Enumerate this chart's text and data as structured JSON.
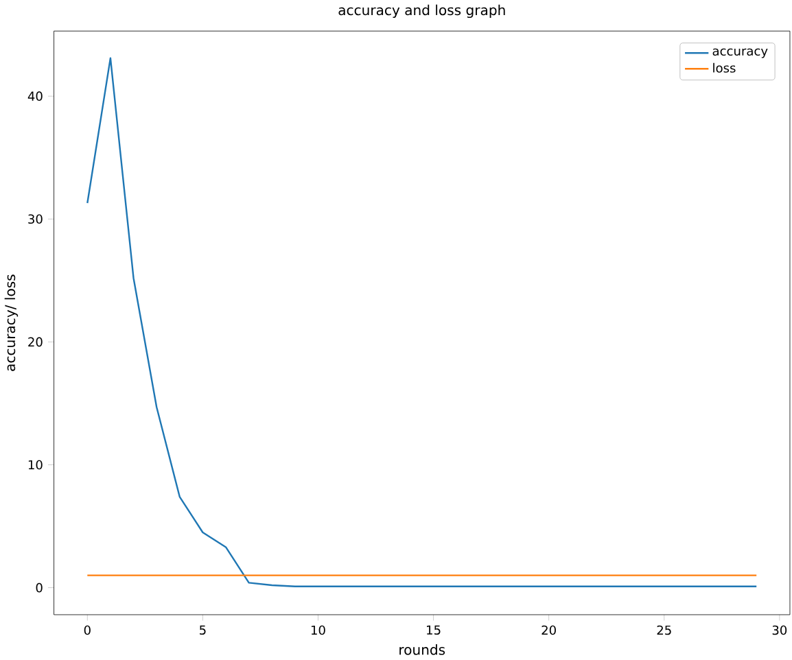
{
  "chart_data": {
    "type": "line",
    "title": "accuracy and loss graph",
    "xlabel": "rounds",
    "ylabel": "accuracy/ loss",
    "x": [
      0,
      1,
      2,
      3,
      4,
      5,
      6,
      7,
      8,
      9,
      10,
      11,
      12,
      13,
      14,
      15,
      16,
      17,
      18,
      19,
      20,
      21,
      22,
      23,
      24,
      25,
      26,
      27,
      28,
      29
    ],
    "series": [
      {
        "name": "accuracy",
        "color": "#1f77b4",
        "values": [
          31.3,
          43.1,
          25.2,
          14.7,
          7.4,
          4.5,
          3.3,
          0.4,
          0.2,
          0.1,
          0.1,
          0.1,
          0.1,
          0.1,
          0.1,
          0.1,
          0.1,
          0.1,
          0.1,
          0.1,
          0.1,
          0.1,
          0.1,
          0.1,
          0.1,
          0.1,
          0.1,
          0.1,
          0.1,
          0.1
        ]
      },
      {
        "name": "loss",
        "color": "#ff7f0e",
        "values": [
          1,
          1,
          1,
          1,
          1,
          1,
          1,
          1,
          1,
          1,
          1,
          1,
          1,
          1,
          1,
          1,
          1,
          1,
          1,
          1,
          1,
          1,
          1,
          1,
          1,
          1,
          1,
          1,
          1,
          1
        ]
      }
    ],
    "xlim": [
      -1.45,
      30.45
    ],
    "ylim": [
      -2.2,
      45.3
    ],
    "xticks": [
      0,
      5,
      10,
      15,
      20,
      25,
      30
    ],
    "yticks": [
      0,
      10,
      20,
      30,
      40
    ],
    "legend": "top right",
    "grid": false
  }
}
